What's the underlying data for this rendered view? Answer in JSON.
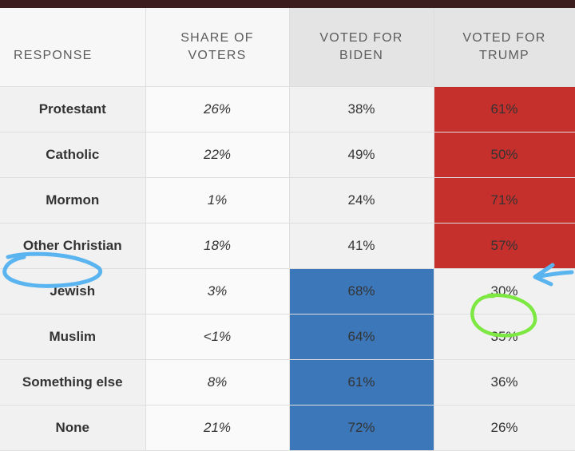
{
  "colors": {
    "biden_win": "#3c77b9",
    "trump_win": "#c6302c",
    "highlight_blue": "#5ab4f0",
    "highlight_green": "#7ee843"
  },
  "chart_data": {
    "type": "table",
    "columns": [
      [
        "RESPONSE"
      ],
      [
        "SHARE OF",
        "VOTERS"
      ],
      [
        "VOTED FOR",
        "BIDEN"
      ],
      [
        "VOTED FOR",
        "TRUMP"
      ]
    ],
    "rows": [
      {
        "response": "Protestant",
        "share": "26%",
        "biden": "38%",
        "trump": "61%",
        "winner": "trump"
      },
      {
        "response": "Catholic",
        "share": "22%",
        "biden": "49%",
        "trump": "50%",
        "winner": "trump"
      },
      {
        "response": "Mormon",
        "share": "1%",
        "biden": "24%",
        "trump": "71%",
        "winner": "trump"
      },
      {
        "response": "Other Christian",
        "share": "18%",
        "biden": "41%",
        "trump": "57%",
        "winner": "trump"
      },
      {
        "response": "Jewish",
        "share": "3%",
        "biden": "68%",
        "trump": "30%",
        "winner": "biden"
      },
      {
        "response": "Muslim",
        "share": "<1%",
        "biden": "64%",
        "trump": "35%",
        "winner": "biden"
      },
      {
        "response": "Something else",
        "share": "8%",
        "biden": "61%",
        "trump": "36%",
        "winner": "biden"
      },
      {
        "response": "None",
        "share": "21%",
        "biden": "72%",
        "trump": "26%",
        "winner": "biden"
      }
    ]
  }
}
